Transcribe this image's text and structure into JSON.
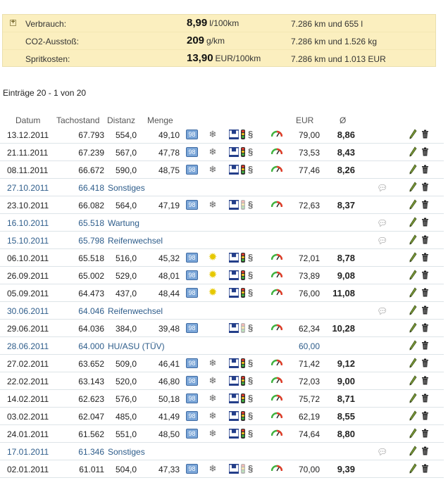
{
  "summary": {
    "expand_icon": "plus-box-icon",
    "rows": [
      {
        "label": "Verbrauch:",
        "value": "8,99",
        "unit": "l/100km",
        "detail": "7.286 km und 655 l"
      },
      {
        "label": "CO2-Ausstoß:",
        "value": "209",
        "unit": "g/km",
        "detail": "7.286 km und 1.526 kg"
      },
      {
        "label": "Spritkosten:",
        "value": "13,90",
        "unit": "EUR/100km",
        "detail": "7.286 km und 1.013 EUR"
      }
    ]
  },
  "entries_count": "Einträge 20 - 1 von 20",
  "table": {
    "headers": {
      "date": "Datum",
      "odometer": "Tachostand",
      "distance": "Distanz",
      "quantity": "Menge",
      "eur": "EUR",
      "avg": "Ø"
    },
    "fuel_label": "98",
    "rows": [
      {
        "type": "fuel",
        "date": "13.12.2011",
        "odo": "67.793",
        "dist": "554,0",
        "qty": "49,10",
        "season": "snow",
        "lights": true,
        "eur": "79,00",
        "avg": "8,86"
      },
      {
        "type": "fuel",
        "date": "21.11.2011",
        "odo": "67.239",
        "dist": "567,0",
        "qty": "47,78",
        "season": "snow",
        "lights": true,
        "eur": "73,53",
        "avg": "8,43"
      },
      {
        "type": "fuel",
        "date": "08.11.2011",
        "odo": "66.672",
        "dist": "590,0",
        "qty": "48,75",
        "season": "snow",
        "lights": true,
        "eur": "77,46",
        "avg": "8,26"
      },
      {
        "type": "event",
        "date": "27.10.2011",
        "odo": "66.418",
        "label": "Sonstiges",
        "eur": "",
        "comment": true
      },
      {
        "type": "fuel",
        "date": "23.10.2011",
        "odo": "66.082",
        "dist": "564,0",
        "qty": "47,19",
        "season": "snow",
        "lights": false,
        "eur": "72,63",
        "avg": "8,37"
      },
      {
        "type": "event",
        "date": "16.10.2011",
        "odo": "65.518",
        "label": "Wartung",
        "eur": "",
        "comment": true
      },
      {
        "type": "event",
        "date": "15.10.2011",
        "odo": "65.798",
        "label": "Reifenwechsel",
        "eur": "",
        "comment": true
      },
      {
        "type": "fuel",
        "date": "06.10.2011",
        "odo": "65.518",
        "dist": "516,0",
        "qty": "45,32",
        "season": "sun",
        "lights": true,
        "eur": "72,01",
        "avg": "8,78"
      },
      {
        "type": "fuel",
        "date": "26.09.2011",
        "odo": "65.002",
        "dist": "529,0",
        "qty": "48,01",
        "season": "sun",
        "lights": true,
        "eur": "73,89",
        "avg": "9,08"
      },
      {
        "type": "fuel",
        "date": "05.09.2011",
        "odo": "64.473",
        "dist": "437,0",
        "qty": "48,44",
        "season": "sun",
        "lights": true,
        "eur": "76,00",
        "avg": "11,08"
      },
      {
        "type": "event",
        "date": "30.06.2011",
        "odo": "64.046",
        "label": "Reifenwechsel",
        "eur": "",
        "comment": true
      },
      {
        "type": "fuel",
        "date": "29.06.2011",
        "odo": "64.036",
        "dist": "384,0",
        "qty": "39,48",
        "season": "none",
        "lights": false,
        "eur": "62,34",
        "avg": "10,28"
      },
      {
        "type": "event",
        "date": "28.06.2011",
        "odo": "64.000",
        "label": "HU/ASU (TÜV)",
        "eur": "60,00",
        "comment": false
      },
      {
        "type": "fuel",
        "date": "27.02.2011",
        "odo": "63.652",
        "dist": "509,0",
        "qty": "46,41",
        "season": "snow",
        "lights": true,
        "eur": "71,42",
        "avg": "9,12"
      },
      {
        "type": "fuel",
        "date": "22.02.2011",
        "odo": "63.143",
        "dist": "520,0",
        "qty": "46,80",
        "season": "snow",
        "lights": true,
        "eur": "72,03",
        "avg": "9,00"
      },
      {
        "type": "fuel",
        "date": "14.02.2011",
        "odo": "62.623",
        "dist": "576,0",
        "qty": "50,18",
        "season": "snow",
        "lights": true,
        "eur": "75,72",
        "avg": "8,71"
      },
      {
        "type": "fuel",
        "date": "03.02.2011",
        "odo": "62.047",
        "dist": "485,0",
        "qty": "41,49",
        "season": "snow",
        "lights": true,
        "eur": "62,19",
        "avg": "8,55"
      },
      {
        "type": "fuel",
        "date": "24.01.2011",
        "odo": "61.562",
        "dist": "551,0",
        "qty": "48,50",
        "season": "snow",
        "lights": true,
        "eur": "74,64",
        "avg": "8,80"
      },
      {
        "type": "event",
        "date": "17.01.2011",
        "odo": "61.346",
        "label": "Sonstiges",
        "eur": "",
        "comment": true
      },
      {
        "type": "fuel",
        "date": "02.01.2011",
        "odo": "61.011",
        "dist": "504,0",
        "qty": "47,33",
        "season": "snow",
        "lights": false,
        "eur": "70,00",
        "avg": "9,39"
      }
    ]
  },
  "icons": {
    "fuel": "fuel-type-badge-icon",
    "snow": "snowflake-icon",
    "sun": "sun-icon",
    "highway": "highway-icon",
    "traffic_light": "traffic-light-icon",
    "curvy_road": "curvy-road-icon",
    "gauge": "gauge-icon",
    "comment": "comment-icon",
    "edit": "pencil-icon",
    "delete": "trash-icon"
  },
  "colors": {
    "summary_bg": "#fbefbf",
    "event_text": "#2e5d8b",
    "fuel_badge": "#7ba6d8"
  }
}
